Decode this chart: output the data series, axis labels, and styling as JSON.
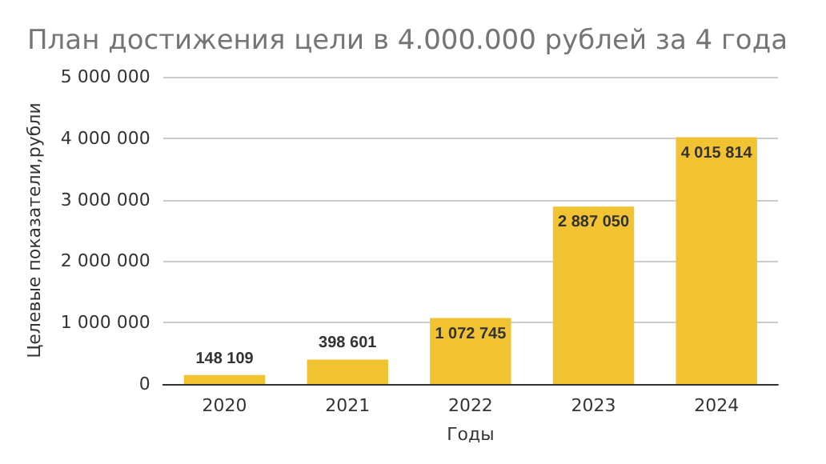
{
  "chart_data": {
    "type": "bar",
    "title": "План достижения цели в 4.000.000 рублей за 4 года",
    "xlabel": "Годы",
    "ylabel": "Целевые показатели,рубли",
    "categories": [
      "2020",
      "2021",
      "2022",
      "2023",
      "2024"
    ],
    "values": [
      148109,
      398601,
      1072745,
      2887050,
      4015814
    ],
    "value_labels": [
      "148 109",
      "398 601",
      "1 072 745",
      "2 887 050",
      "4 015 814"
    ],
    "color": "#f1c232",
    "ylim": [
      0,
      5000000
    ],
    "yticks": [
      {
        "value": 0,
        "label": "0"
      },
      {
        "value": 1000000,
        "label": "1 000 000"
      },
      {
        "value": 2000000,
        "label": "2 000 000"
      },
      {
        "value": 3000000,
        "label": "3 000 000"
      },
      {
        "value": 4000000,
        "label": "4 000 000"
      },
      {
        "value": 5000000,
        "label": "5 000 000"
      }
    ],
    "grid": true
  }
}
